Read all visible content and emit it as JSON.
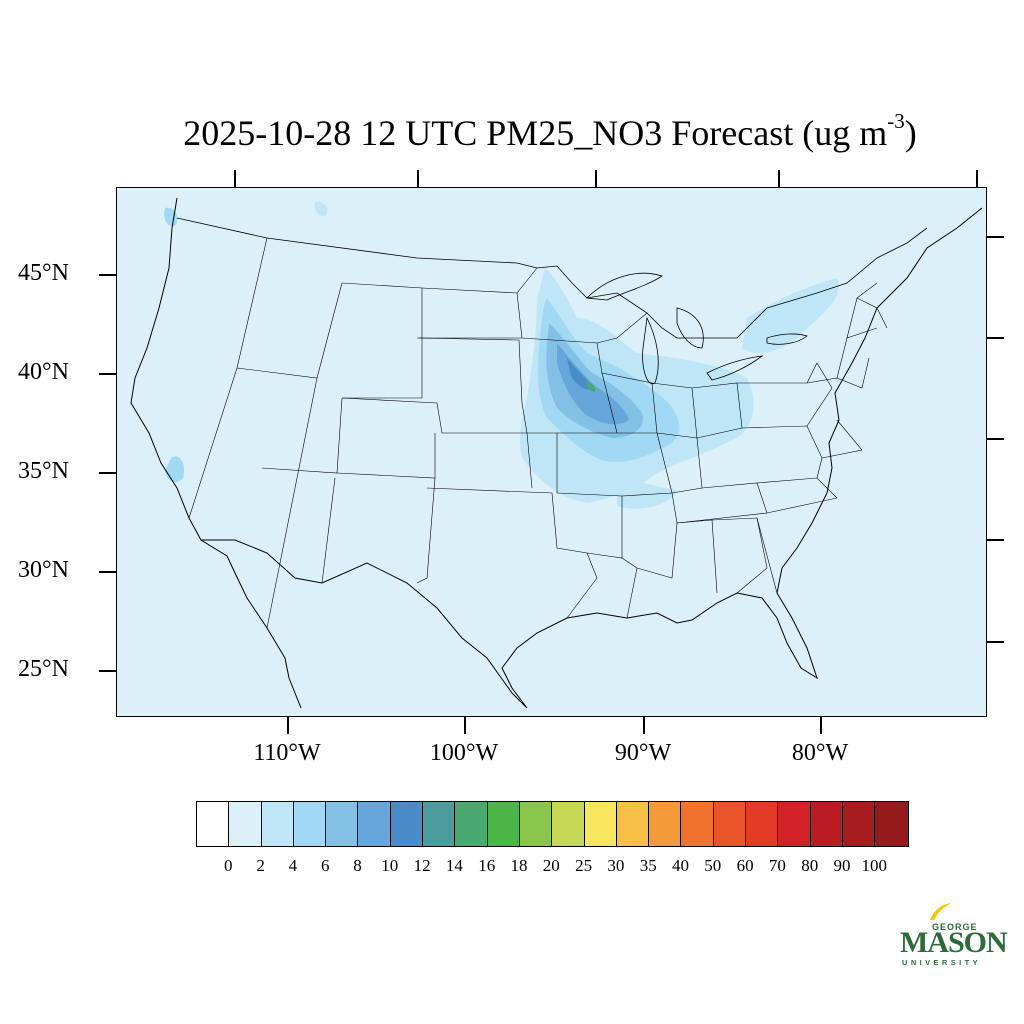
{
  "title": {
    "text": "2025-10-28 12 UTC PM25_NO3 Forecast (ug m",
    "exponent": "-3",
    "close": ")"
  },
  "map": {
    "background_color": "#dcf0fa",
    "lat_labels": [
      "45°N",
      "40°N",
      "35°N",
      "30°N",
      "25°N"
    ],
    "lon_labels": [
      "110°W",
      "100°W",
      "90°W",
      "80°W"
    ]
  },
  "colorbar": {
    "colors": [
      "#ffffff",
      "#dcf0fa",
      "#bfe6f7",
      "#a1d8f4",
      "#84c0e6",
      "#66a6da",
      "#4a8bc9",
      "#4a9d9c",
      "#4aa871",
      "#4bb548",
      "#8ac64c",
      "#c5d856",
      "#f8e65f",
      "#f6c047",
      "#f49a3b",
      "#f0722d",
      "#e9542a",
      "#e23b26",
      "#d42027",
      "#bb1c24",
      "#a81b1f",
      "#941a1c"
    ],
    "labels": [
      "0",
      "2",
      "4",
      "6",
      "8",
      "10",
      "12",
      "14",
      "16",
      "18",
      "20",
      "25",
      "30",
      "35",
      "40",
      "50",
      "60",
      "70",
      "80",
      "90",
      "100"
    ]
  },
  "logo": {
    "top_line": "GEORGE",
    "main": "MASON",
    "bottom_line": "UNIVERSITY",
    "color": "#2e6b3a",
    "accent_color": "#f2c800"
  }
}
